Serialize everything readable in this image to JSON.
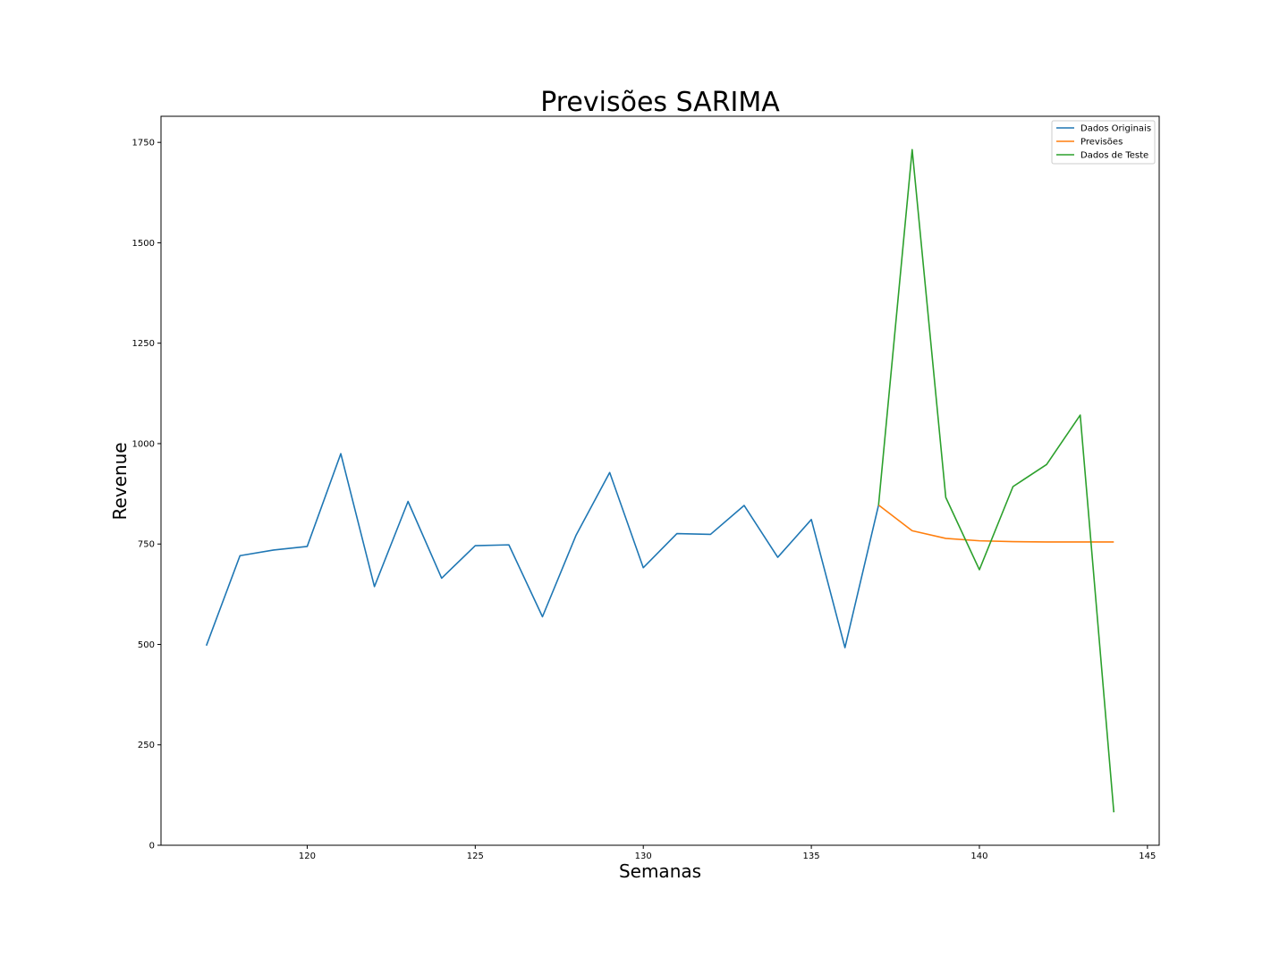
{
  "chart_data": {
    "type": "line",
    "title": "Previsões SARIMA",
    "xlabel": "Semanas",
    "ylabel": "Revenue",
    "xlim": [
      115.65,
      145.35
    ],
    "ylim": [
      0,
      1815
    ],
    "xticks": [
      120,
      125,
      130,
      135,
      140,
      145
    ],
    "yticks": [
      0,
      250,
      500,
      750,
      1000,
      1250,
      1500,
      1750
    ],
    "grid": false,
    "legend_position": "top-right",
    "series": [
      {
        "name": "Dados Originais",
        "color": "#1f77b4",
        "x": [
          117,
          118,
          119,
          120,
          121,
          122,
          123,
          124,
          125,
          126,
          127,
          128,
          129,
          130,
          131,
          132,
          133,
          134,
          135,
          136,
          137
        ],
        "y": [
          497,
          721,
          735,
          744,
          975,
          644,
          856,
          665,
          746,
          748,
          569,
          772,
          928,
          691,
          776,
          774,
          846,
          717,
          811,
          492,
          847
        ]
      },
      {
        "name": "Previsões",
        "color": "#ff7f0e",
        "x": [
          137,
          138,
          139,
          140,
          141,
          142,
          143,
          144
        ],
        "y": [
          847,
          783,
          764,
          758,
          756,
          755,
          755,
          755
        ]
      },
      {
        "name": "Dados de Teste",
        "color": "#2ca02c",
        "x": [
          137,
          138,
          139,
          140,
          141,
          142,
          143,
          144
        ],
        "y": [
          847,
          1732,
          866,
          686,
          893,
          948,
          1071,
          82
        ]
      }
    ]
  }
}
